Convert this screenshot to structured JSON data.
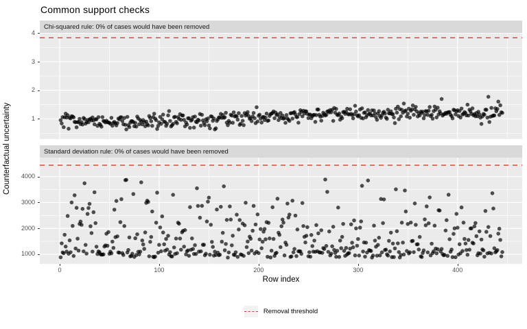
{
  "title": "Common support checks",
  "axes": {
    "x_title": "Row index",
    "y_title": "Counterfactual uncertainty"
  },
  "legend": {
    "label": "Removal threshold",
    "line_color": "#D93A2B",
    "line_style": "dashed"
  },
  "colors": {
    "panel_bg": "#EBEBEB",
    "strip_bg": "#D9D9D9",
    "grid": "#FFFFFF",
    "point": "#000000",
    "point_opacity": 0.68,
    "threshold": "#D93A2B",
    "tick_label": "#4D4D4D",
    "legend_key_bg": "#F2F2F2"
  },
  "chart_data": [
    {
      "type": "scatter",
      "facet_label": "Chi-squared rule: 0% of cases would have been removed",
      "threshold": 3.84,
      "x_ticks": [
        0,
        100,
        200,
        300,
        400
      ],
      "x_minor": [
        50,
        150,
        250,
        350,
        450
      ],
      "y_ticks": [
        1,
        2,
        3,
        4
      ],
      "y_minor": [
        0.5,
        1.5,
        2.5,
        3.5
      ],
      "x_range": [
        -20,
        465
      ],
      "y_range": [
        0.29,
        4.01
      ],
      "n_points": 445,
      "points_gen": {
        "model": "sigmoid-trend",
        "seed": 101,
        "base": 0.93,
        "rise": 0.27,
        "center": 205,
        "width": 28,
        "noise_sd": 0.13,
        "spike_rate": 0.02,
        "spike_min_x": 150,
        "y_min": 0.63,
        "y_max": 1.8
      }
    },
    {
      "type": "scatter",
      "facet_label": "Standard deviation rule: 0% of cases would have been removed",
      "threshold": 4440,
      "x_ticks": [
        0,
        100,
        200,
        300,
        400
      ],
      "x_minor": [
        50,
        150,
        250,
        350,
        450
      ],
      "y_ticks": [
        1000,
        2000,
        3000,
        4000
      ],
      "y_minor": [
        1500,
        2500,
        3500,
        4500
      ],
      "x_range": [
        -20,
        465
      ],
      "y_range": [
        629,
        4733
      ],
      "n_points": 445,
      "points_gen": {
        "model": "mixture",
        "seed": 202,
        "floor": 870,
        "floor_sd": 260,
        "mid_lo": 950,
        "mid_span": 1300,
        "hi_lo": 2100,
        "hi_span": 1100,
        "top_lo": 3200,
        "top_span": 700,
        "w_floor": 0.42,
        "w_mid": 0.38,
        "w_hi": 0.165,
        "y_min": 860,
        "y_max": 3920
      }
    }
  ]
}
